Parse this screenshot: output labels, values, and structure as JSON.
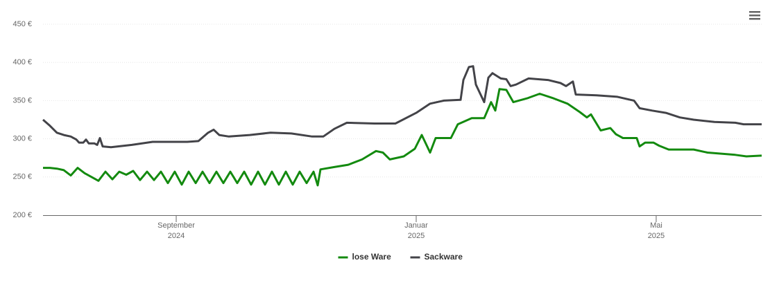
{
  "chart_data": {
    "type": "line",
    "xlim": [
      2024.4817,
      2025.4798
    ],
    "xticks": [
      {
        "value": 2024.6667,
        "label": "September",
        "year": "2024"
      },
      {
        "value": 2025.0,
        "label": "Januar",
        "year": "2025"
      },
      {
        "value": 2025.3333,
        "label": "Mai",
        "year": "2025"
      }
    ],
    "ylim": [
      200,
      450
    ],
    "yticks": [
      {
        "value": 200,
        "label": "200 €"
      },
      {
        "value": 250,
        "label": "250 €"
      },
      {
        "value": 300,
        "label": "300 €"
      },
      {
        "value": 350,
        "label": "350 €"
      },
      {
        "value": 400,
        "label": "400 €"
      },
      {
        "value": 450,
        "label": "450 €"
      }
    ],
    "grid": true,
    "legend": "bottom",
    "series": [
      {
        "name": "lose Ware",
        "color": "#138a0f",
        "x": [
          2024.4817,
          2024.4913,
          2024.501,
          2024.5106,
          2024.5202,
          2024.5298,
          2024.5395,
          2024.5491,
          2024.5587,
          2024.5684,
          2024.578,
          2024.5876,
          2024.5973,
          2024.6069,
          2024.6165,
          2024.6262,
          2024.6358,
          2024.6455,
          2024.6551,
          2024.6647,
          2024.6744,
          2024.684,
          2024.6937,
          2024.7033,
          2024.7129,
          2024.7226,
          2024.7322,
          2024.7418,
          2024.7515,
          2024.7611,
          2024.7707,
          2024.7804,
          2024.79,
          2024.7996,
          2024.8093,
          2024.8189,
          2024.8285,
          2024.8382,
          2024.8478,
          2024.8574,
          2024.8632,
          2024.8671,
          2024.8863,
          2024.9056,
          2024.9249,
          2024.9441,
          2024.9538,
          2024.9634,
          2024.9827,
          2024.9981,
          2025.0077,
          2025.0193,
          2025.027,
          2025.0385,
          2025.0482,
          2025.0578,
          2025.0771,
          2025.0944,
          2025.104,
          2025.1098,
          2025.1156,
          2025.1252,
          2025.1349,
          2025.1541,
          2025.1715,
          2025.1907,
          2025.21,
          2025.2273,
          2025.237,
          2025.2427,
          2025.2562,
          2025.2697,
          2025.2774,
          2025.2871,
          2025.3063,
          2025.3102,
          2025.3179,
          2025.3295,
          2025.3372,
          2025.3507,
          2025.3854,
          2025.4046,
          2025.4432,
          2025.4586,
          2025.4798
        ],
        "values": [
          262,
          262,
          261,
          259,
          252,
          262,
          255,
          250,
          245,
          257,
          247,
          257,
          253,
          258,
          246,
          257,
          246,
          257,
          242,
          257,
          240,
          257,
          242,
          257,
          242,
          257,
          242,
          257,
          242,
          257,
          240,
          257,
          240,
          257,
          240,
          257,
          240,
          257,
          242,
          257,
          239,
          260,
          263,
          266,
          273,
          284,
          282,
          273,
          277,
          287,
          305,
          282,
          301,
          301,
          301,
          319,
          327,
          327,
          348,
          337,
          365,
          364,
          348,
          353,
          359,
          353,
          346,
          335,
          328,
          332,
          311,
          314,
          306,
          301,
          301,
          290,
          295,
          295,
          291,
          286,
          286,
          282,
          279,
          277,
          278
        ]
      },
      {
        "name": "Sackware",
        "color": "#434348",
        "x": [
          2024.4817,
          2024.4913,
          2024.501,
          2024.5106,
          2024.5202,
          2024.528,
          2024.5318,
          2024.5376,
          2024.5414,
          2024.5453,
          2024.553,
          2024.5569,
          2024.5607,
          2024.5646,
          2024.5761,
          2024.605,
          2024.6339,
          2024.6628,
          2024.6821,
          2024.6975,
          2024.711,
          2024.7187,
          2024.7264,
          2024.7399,
          2024.7688,
          2024.7977,
          2024.8266,
          2024.8555,
          2024.8709,
          2024.8863,
          2024.9037,
          2024.9422,
          2024.9711,
          2025.0,
          2025.0193,
          2025.0385,
          2025.0617,
          2025.0655,
          2025.0732,
          2025.079,
          2025.0829,
          2025.0944,
          2025.1002,
          2025.1059,
          2025.1175,
          2025.1252,
          2025.131,
          2025.1387,
          2025.1561,
          2025.183,
          2025.2004,
          2025.2081,
          2025.2177,
          2025.2216,
          2025.2505,
          2025.2794,
          2025.3025,
          2025.3102,
          2025.3276,
          2025.3468,
          2025.3661,
          2025.3854,
          2025.4143,
          2025.4432,
          2025.4547,
          2025.4798
        ],
        "values": [
          325,
          317,
          308,
          305,
          303,
          299,
          295,
          295,
          299,
          294,
          294,
          292,
          301,
          290,
          289,
          292,
          296,
          296,
          296,
          297,
          308,
          312,
          305,
          303,
          305,
          308,
          307,
          303,
          303,
          313,
          321,
          320,
          320,
          334,
          346,
          350,
          351,
          377,
          394,
          395,
          371,
          348,
          380,
          386,
          379,
          378,
          369,
          371,
          379,
          377,
          373,
          369,
          375,
          358,
          357,
          355,
          350,
          340,
          337,
          334,
          328,
          325,
          322,
          321,
          319,
          319
        ]
      }
    ]
  }
}
